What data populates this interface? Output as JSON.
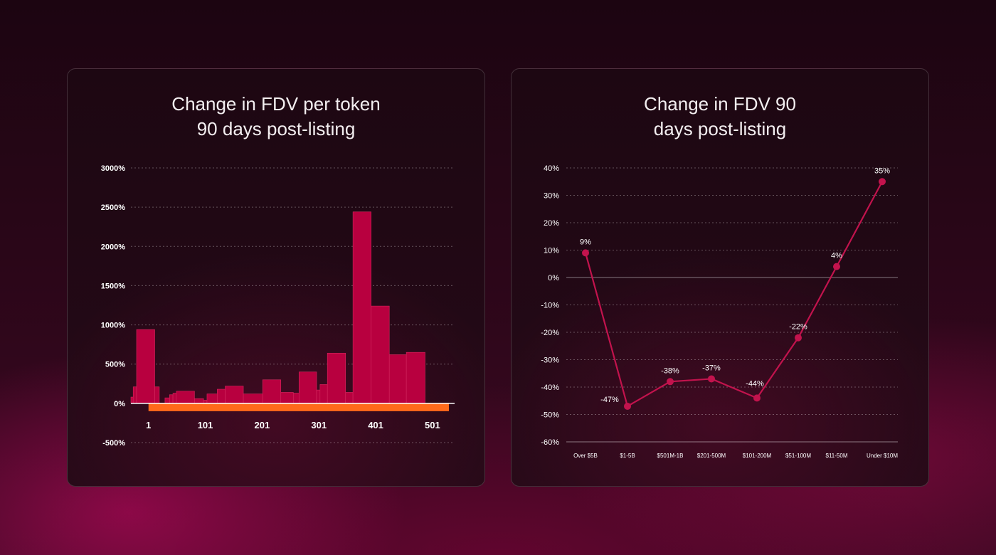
{
  "colors": {
    "bar": "#b8003f",
    "bar_border": "#d4295f",
    "negative": "#ff6a1a",
    "line": "#c2134d",
    "grid": "rgba(255,255,255,0.30)",
    "text": "#ffffff"
  },
  "left_card": {
    "title_line1": "Change in FDV per token",
    "title_line2": "90 days post-listing"
  },
  "right_card": {
    "title_line1": "Change in FDV 90",
    "title_line2": "days post-listing"
  },
  "chart_data": [
    {
      "type": "bar",
      "title": "Change in FDV per token 90 days post-listing",
      "xlabel": "",
      "ylabel": "",
      "ylim": [
        -500,
        3000
      ],
      "yticks": [
        3000,
        2500,
        2000,
        1500,
        1000,
        500,
        0,
        -500
      ],
      "ytick_labels": [
        "3000%",
        "2500%",
        "2000%",
        "1500%",
        "1000%",
        "500%",
        "0%",
        "-500%"
      ],
      "xlim": [
        -30,
        540
      ],
      "xticks": [
        1,
        101,
        201,
        301,
        401,
        501
      ],
      "xtick_labels": [
        "1",
        "101",
        "201",
        "301",
        "401",
        "501"
      ],
      "grid": true,
      "series": [
        {
          "values": [
            {
              "x": [
                -30,
                -26
              ],
              "y": 80
            },
            {
              "x": [
                -26,
                -20
              ],
              "y": 210
            },
            {
              "x": [
                -20,
                12
              ],
              "y": 940
            },
            {
              "x": [
                12,
                20
              ],
              "y": 210
            },
            {
              "x": [
                30,
                38
              ],
              "y": 70
            },
            {
              "x": [
                38,
                44
              ],
              "y": 110
            },
            {
              "x": [
                44,
                50
              ],
              "y": 130
            },
            {
              "x": [
                50,
                82
              ],
              "y": 155
            },
            {
              "x": [
                82,
                98
              ],
              "y": 60
            },
            {
              "x": [
                98,
                104
              ],
              "y": 40
            },
            {
              "x": [
                104,
                122
              ],
              "y": 120
            },
            {
              "x": [
                122,
                136
              ],
              "y": 180
            },
            {
              "x": [
                136,
                168
              ],
              "y": 220
            },
            {
              "x": [
                168,
                202
              ],
              "y": 120
            },
            {
              "x": [
                202,
                234
              ],
              "y": 300
            },
            {
              "x": [
                234,
                256
              ],
              "y": 140
            },
            {
              "x": [
                256,
                266
              ],
              "y": 130
            },
            {
              "x": [
                266,
                297
              ],
              "y": 400
            },
            {
              "x": [
                297,
                303
              ],
              "y": 170
            },
            {
              "x": [
                303,
                316
              ],
              "y": 240
            },
            {
              "x": [
                316,
                348
              ],
              "y": 640
            },
            {
              "x": [
                348,
                361
              ],
              "y": 140
            },
            {
              "x": [
                361,
                393
              ],
              "y": 2440
            },
            {
              "x": [
                393,
                425
              ],
              "y": 1240
            },
            {
              "x": [
                425,
                455
              ],
              "y": 620
            },
            {
              "x": [
                455,
                488
              ],
              "y": 650
            }
          ]
        },
        {
          "values": [
            {
              "x": [
                1,
                530
              ],
              "y": -100
            }
          ]
        }
      ]
    },
    {
      "type": "line",
      "title": "Change in FDV 90 days post-listing",
      "xlabel": "",
      "ylabel": "",
      "categories": [
        "Over $5B",
        "$1-5B",
        "$501M-1B",
        "$201-500M",
        "$101-200M",
        "$51-100M",
        "$11-50M",
        "Under $10M"
      ],
      "ylim": [
        -60,
        40
      ],
      "yticks": [
        40,
        30,
        20,
        10,
        0,
        -10,
        -20,
        -30,
        -40,
        -50,
        -60
      ],
      "ytick_labels": [
        "40%",
        "30%",
        "20%",
        "10%",
        "0%",
        "-10%",
        "-20%",
        "-30%",
        "-40%",
        "-50%",
        "-60%"
      ],
      "grid": true,
      "series": [
        {
          "values": [
            9,
            -47,
            -38,
            -37,
            -44,
            -22,
            4,
            35
          ],
          "labels": [
            "9%",
            "-47%",
            "-38%",
            "-37%",
            "-44%",
            "-22%",
            "4%",
            "35%"
          ]
        }
      ]
    }
  ]
}
